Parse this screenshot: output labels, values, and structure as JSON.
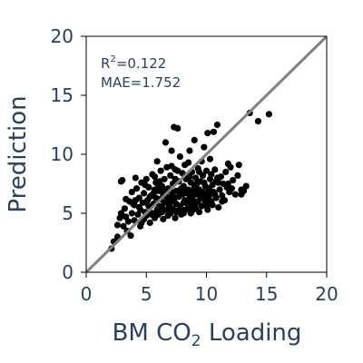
{
  "chart_data": {
    "type": "scatter",
    "title": "",
    "xlabel": {
      "base": "BM CO",
      "sub": "2",
      "tail": " Loading"
    },
    "ylabel": "Prediction",
    "xlim": [
      0,
      20
    ],
    "ylim": [
      0,
      20
    ],
    "xticks": [
      0,
      5,
      10,
      15,
      20
    ],
    "yticks": [
      0,
      5,
      10,
      15,
      20
    ],
    "grid": false,
    "colors": {
      "points": "#000000",
      "diagonal": "#808080",
      "frame": "#000000",
      "text": "#2a3f5f"
    },
    "diagonal_line": {
      "x": [
        0,
        20
      ],
      "y": [
        0,
        20
      ]
    },
    "annotation": {
      "r2_prefix": "R",
      "r2_sup": "2",
      "r2_value": "=0.122",
      "mae": "MAE=1.752"
    },
    "points": [
      [
        2.1,
        2.0
      ],
      [
        2.6,
        3.0
      ],
      [
        2.6,
        4.0
      ],
      [
        2.8,
        4.6
      ],
      [
        2.9,
        5.0
      ],
      [
        2.9,
        7.7
      ],
      [
        3.0,
        7.8
      ],
      [
        3.2,
        5.4
      ],
      [
        3.3,
        6.2
      ],
      [
        3.4,
        3.5
      ],
      [
        3.5,
        4.3
      ],
      [
        3.6,
        6.0
      ],
      [
        3.7,
        3.1
      ],
      [
        3.8,
        5.0
      ],
      [
        3.8,
        6.8
      ],
      [
        4.0,
        4.4
      ],
      [
        4.0,
        5.7
      ],
      [
        4.1,
        8.0
      ],
      [
        4.2,
        7.1
      ],
      [
        4.3,
        4.9
      ],
      [
        4.4,
        6.3
      ],
      [
        4.5,
        3.9
      ],
      [
        4.5,
        5.3
      ],
      [
        4.6,
        7.6
      ],
      [
        4.7,
        5.9
      ],
      [
        4.8,
        4.5
      ],
      [
        4.8,
        6.7
      ],
      [
        4.9,
        5.1
      ],
      [
        5.0,
        7.9
      ],
      [
        5.0,
        4.8
      ],
      [
        5.1,
        6.1
      ],
      [
        5.2,
        5.6
      ],
      [
        5.2,
        7.2
      ],
      [
        5.3,
        4.2
      ],
      [
        5.4,
        6.5
      ],
      [
        5.5,
        5.0
      ],
      [
        5.5,
        8.3
      ],
      [
        5.6,
        5.8
      ],
      [
        5.7,
        7.0
      ],
      [
        5.7,
        4.6
      ],
      [
        5.8,
        6.3
      ],
      [
        5.9,
        5.3
      ],
      [
        5.9,
        9.4
      ],
      [
        6.0,
        6.9
      ],
      [
        6.0,
        4.9
      ],
      [
        6.1,
        7.7
      ],
      [
        6.1,
        5.6
      ],
      [
        6.2,
        6.2
      ],
      [
        6.2,
        8.6
      ],
      [
        6.3,
        5.1
      ],
      [
        6.3,
        7.3
      ],
      [
        6.4,
        4.5
      ],
      [
        6.4,
        6.6
      ],
      [
        6.5,
        5.9
      ],
      [
        6.5,
        7.9
      ],
      [
        6.6,
        5.3
      ],
      [
        6.6,
        11.0
      ],
      [
        6.7,
        6.4
      ],
      [
        6.7,
        8.9
      ],
      [
        6.8,
        4.8
      ],
      [
        6.8,
        7.1
      ],
      [
        6.9,
        5.7
      ],
      [
        6.9,
        6.0
      ],
      [
        7.0,
        8.2
      ],
      [
        7.0,
        5.0
      ],
      [
        7.1,
        6.8
      ],
      [
        7.1,
        10.3
      ],
      [
        7.2,
        5.4
      ],
      [
        7.2,
        7.5
      ],
      [
        7.3,
        6.2
      ],
      [
        7.3,
        12.3
      ],
      [
        7.4,
        4.6
      ],
      [
        7.4,
        8.7
      ],
      [
        7.5,
        5.8
      ],
      [
        7.5,
        6.9
      ],
      [
        7.6,
        12.2
      ],
      [
        7.6,
        5.2
      ],
      [
        7.7,
        7.7
      ],
      [
        7.7,
        6.4
      ],
      [
        7.8,
        9.8
      ],
      [
        7.8,
        5.6
      ],
      [
        7.9,
        7.1
      ],
      [
        7.9,
        4.9
      ],
      [
        8.0,
        6.6
      ],
      [
        8.0,
        8.4
      ],
      [
        8.1,
        5.9
      ],
      [
        8.1,
        7.3
      ],
      [
        8.2,
        6.1
      ],
      [
        8.2,
        9.1
      ],
      [
        8.3,
        5.3
      ],
      [
        8.3,
        7.9
      ],
      [
        8.4,
        6.7
      ],
      [
        8.4,
        8.0
      ],
      [
        8.5,
        5.6
      ],
      [
        8.5,
        7.0
      ],
      [
        8.6,
        6.3
      ],
      [
        8.6,
        10.3
      ],
      [
        8.7,
        5.0
      ],
      [
        8.7,
        7.6
      ],
      [
        8.8,
        6.9
      ],
      [
        8.8,
        8.5
      ],
      [
        8.9,
        5.8
      ],
      [
        8.9,
        6.5
      ],
      [
        9.0,
        7.2
      ],
      [
        9.0,
        11.2
      ],
      [
        9.1,
        5.4
      ],
      [
        9.1,
        8.0
      ],
      [
        9.2,
        6.6
      ],
      [
        9.2,
        7.5
      ],
      [
        9.3,
        6.0
      ],
      [
        9.3,
        8.8
      ],
      [
        9.4,
        5.1
      ],
      [
        9.4,
        7.0
      ],
      [
        9.5,
        6.4
      ],
      [
        9.5,
        7.7
      ],
      [
        9.6,
        5.6
      ],
      [
        9.6,
        9.4
      ],
      [
        9.7,
        6.8
      ],
      [
        9.7,
        8.2
      ],
      [
        9.8,
        6.2
      ],
      [
        9.8,
        10.6
      ],
      [
        9.9,
        5.9
      ],
      [
        9.9,
        7.3
      ],
      [
        10.0,
        6.7
      ],
      [
        10.0,
        8.6
      ],
      [
        10.1,
        5.3
      ],
      [
        10.1,
        11.8
      ],
      [
        10.2,
        7.1
      ],
      [
        10.2,
        6.4
      ],
      [
        10.3,
        7.9
      ],
      [
        10.3,
        9.6
      ],
      [
        10.4,
        6.0
      ],
      [
        10.4,
        8.3
      ],
      [
        10.5,
        5.7
      ],
      [
        10.5,
        7.4
      ],
      [
        10.6,
        6.8
      ],
      [
        10.6,
        11.9
      ],
      [
        10.7,
        8.7
      ],
      [
        10.8,
        6.3
      ],
      [
        10.8,
        7.7
      ],
      [
        10.9,
        12.5
      ],
      [
        11.0,
        5.5
      ],
      [
        11.1,
        7.0
      ],
      [
        11.2,
        8.1
      ],
      [
        11.3,
        6.5
      ],
      [
        11.4,
        7.5
      ],
      [
        11.5,
        6.1
      ],
      [
        11.6,
        8.5
      ],
      [
        11.7,
        7.2
      ],
      [
        11.8,
        9.2
      ],
      [
        11.9,
        6.8
      ],
      [
        12.0,
        8.9
      ],
      [
        12.2,
        7.8
      ],
      [
        12.4,
        6.6
      ],
      [
        12.6,
        8.2
      ],
      [
        12.9,
        7.0
      ],
      [
        13.1,
        6.9
      ],
      [
        13.3,
        7.3
      ],
      [
        13.6,
        13.5
      ],
      [
        14.3,
        12.8
      ],
      [
        15.2,
        13.4
      ],
      [
        4.1,
        6.1
      ],
      [
        4.9,
        7.4
      ],
      [
        5.3,
        6.4
      ],
      [
        5.8,
        7.6
      ],
      [
        6.3,
        5.5
      ],
      [
        6.6,
        6.9
      ],
      [
        6.9,
        5.4
      ],
      [
        7.2,
        6.5
      ],
      [
        7.5,
        5.1
      ],
      [
        7.8,
        6.9
      ],
      [
        8.1,
        5.0
      ],
      [
        8.4,
        5.9
      ],
      [
        8.7,
        6.2
      ],
      [
        9.0,
        5.6
      ],
      [
        9.3,
        6.9
      ],
      [
        9.6,
        6.5
      ],
      [
        10.0,
        5.6
      ],
      [
        10.4,
        6.8
      ],
      [
        4.4,
        5.5
      ],
      [
        5.0,
        5.9
      ],
      [
        5.6,
        6.7
      ],
      [
        6.2,
        5.2
      ],
      [
        6.8,
        6.2
      ],
      [
        7.4,
        7.9
      ],
      [
        8.0,
        5.3
      ],
      [
        8.6,
        8.1
      ],
      [
        9.2,
        5.9
      ],
      [
        9.8,
        7.6
      ],
      [
        11.0,
        7.6
      ],
      [
        12.7,
        9.1
      ],
      [
        3.3,
        4.7
      ],
      [
        3.9,
        5.8
      ],
      [
        5.4,
        4.9
      ],
      [
        6.0,
        7.4
      ],
      [
        7.0,
        5.9
      ],
      [
        7.6,
        8.6
      ],
      [
        8.2,
        7.0
      ],
      [
        8.8,
        5.2
      ],
      [
        9.4,
        8.5
      ],
      [
        10.2,
        5.9
      ],
      [
        10.7,
        6.6
      ],
      [
        11.3,
        6.0
      ],
      [
        12.1,
        7.1
      ],
      [
        2.3,
        2.6
      ],
      [
        3.1,
        3.9
      ],
      [
        4.6,
        4.2
      ],
      [
        5.7,
        8.1
      ],
      [
        6.4,
        7.0
      ],
      [
        7.1,
        9.0
      ],
      [
        8.5,
        9.3
      ],
      [
        9.0,
        6.0
      ],
      [
        10.9,
        8.0
      ],
      [
        11.8,
        7.5
      ],
      [
        12.9,
        6.6
      ]
    ]
  }
}
